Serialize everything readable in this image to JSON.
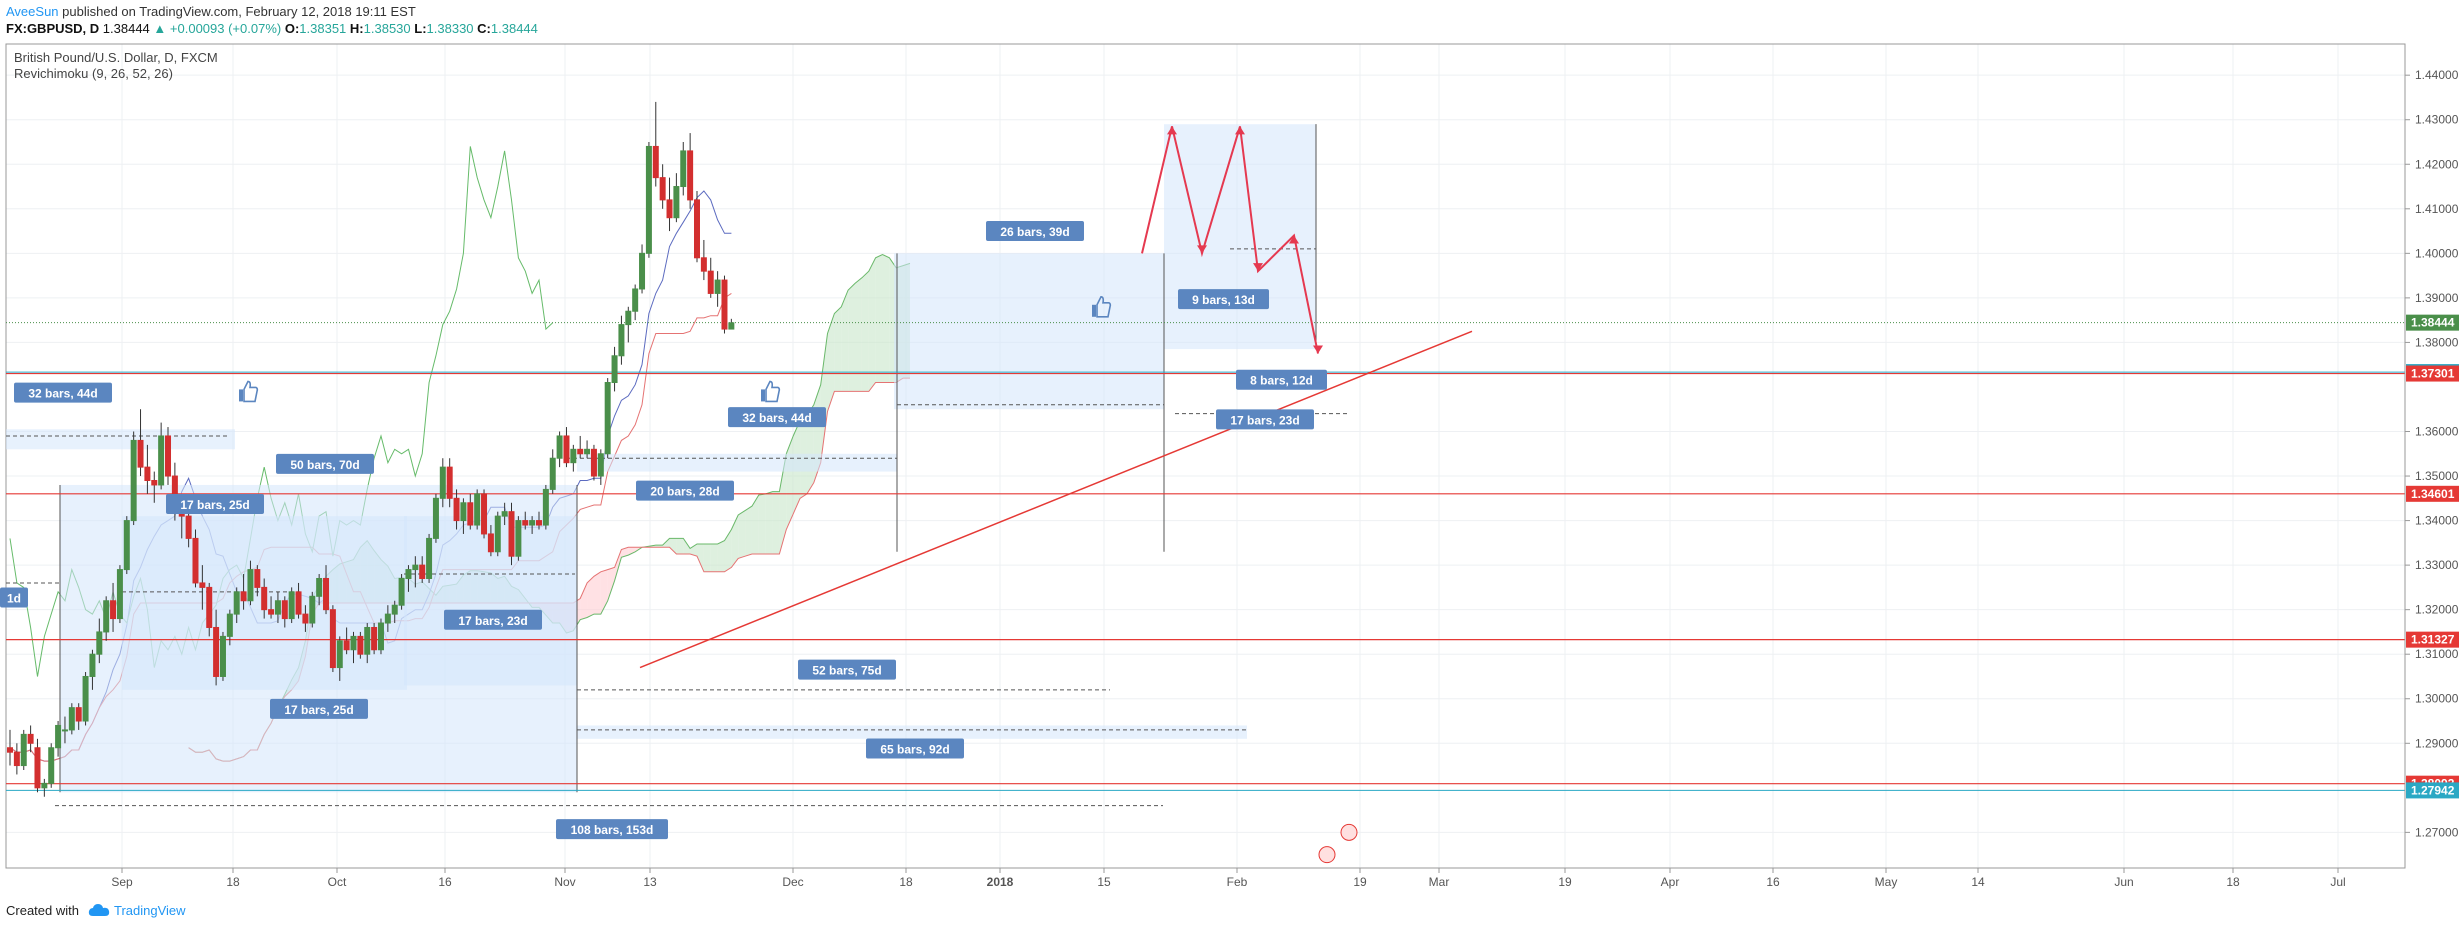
{
  "header": {
    "user": "AveeSun",
    "published": "published on TradingView.com, February 12, 2018 19:11 EST",
    "symbol": "FX:GBPUSD, D",
    "last": "1.38444",
    "change": "▲ +0.00093 (+0.07%)",
    "o_label": "O:",
    "o_value": "1.38351",
    "h_label": "H:",
    "h_value": "1.38530",
    "l_label": "L:",
    "l_value": "1.38330",
    "c_label": "C:",
    "c_value": "1.38444"
  },
  "footer": {
    "created_with": "Created with",
    "brand": "TradingView"
  },
  "colors": {
    "up": "#4a8f4a",
    "down": "#d32f2f",
    "grid": "#eef0f3",
    "axis": "#555555",
    "hline": "#e53935",
    "boxFill": "#d4e5fb",
    "labelBg": "#5b86c0"
  },
  "chart_data": {
    "type": "candlestick",
    "title": "British Pound/U.S. Dollar, D, FXCM",
    "indicator": "Revichimoku (9, 26, 52, 26)",
    "ylim": [
      1.262,
      1.447
    ],
    "x_ticks": [
      "Sep",
      "18",
      "Oct",
      "16",
      "Nov",
      "13",
      "Dec",
      "18",
      "2018",
      "15",
      "Feb",
      "19",
      "Mar",
      "19",
      "Apr",
      "16",
      "May",
      "14",
      "Jun",
      "18",
      "Jul"
    ],
    "y_ticks": [
      "1.44000",
      "1.43000",
      "1.42000",
      "1.41000",
      "1.40000",
      "1.39000",
      "1.38000",
      "1.36000",
      "1.35000",
      "1.34000",
      "1.33000",
      "1.32000",
      "1.31000",
      "1.30000",
      "1.29000",
      "1.27000"
    ],
    "price_tags": [
      {
        "label": "1.38444",
        "value": 1.38444,
        "color": "#4a8f4a"
      },
      {
        "label": "1.37334",
        "value": 1.37334,
        "color": "#2aa8c4"
      },
      {
        "label": "1.37301",
        "value": 1.37301,
        "color": "#e53935"
      },
      {
        "label": "1.34601",
        "value": 1.34601,
        "color": "#e53935"
      },
      {
        "label": "1.31327",
        "value": 1.31327,
        "color": "#e53935"
      },
      {
        "label": "1.28093",
        "value": 1.28093,
        "color": "#e53935"
      },
      {
        "label": "1.27942",
        "value": 1.27942,
        "color": "#2aa8c4"
      }
    ],
    "hlines": [
      1.37301,
      1.34601,
      1.31327,
      1.28093
    ],
    "range_labels": [
      "32 bars, 44d",
      "50 bars, 70d",
      "17 bars, 25d",
      "20 bars, 28d",
      "32 bars, 44d",
      "26 bars, 39d",
      "9 bars, 13d",
      "8 bars, 12d",
      "17 bars, 23d",
      "17 bars, 23d",
      "17 bars, 25d",
      "52 bars, 75d",
      "65 bars, 92d",
      "108 bars, 153d",
      "1d"
    ],
    "candles": [
      [
        1.289,
        1.293,
        1.285,
        1.288
      ],
      [
        1.288,
        1.29,
        1.283,
        1.285
      ],
      [
        1.285,
        1.293,
        1.284,
        1.292
      ],
      [
        1.292,
        1.294,
        1.288,
        1.29
      ],
      [
        1.289,
        1.291,
        1.279,
        1.28
      ],
      [
        1.28,
        1.282,
        1.278,
        1.281
      ],
      [
        1.281,
        1.29,
        1.28,
        1.289
      ],
      [
        1.289,
        1.295,
        1.287,
        1.294
      ],
      [
        1.293,
        1.296,
        1.29,
        1.293
      ],
      [
        1.293,
        1.299,
        1.292,
        1.298
      ],
      [
        1.298,
        1.299,
        1.293,
        1.295
      ],
      [
        1.295,
        1.306,
        1.294,
        1.305
      ],
      [
        1.305,
        1.311,
        1.302,
        1.31
      ],
      [
        1.31,
        1.318,
        1.308,
        1.315
      ],
      [
        1.315,
        1.323,
        1.313,
        1.322
      ],
      [
        1.322,
        1.326,
        1.315,
        1.318
      ],
      [
        1.318,
        1.33,
        1.317,
        1.329
      ],
      [
        1.329,
        1.341,
        1.328,
        1.34
      ],
      [
        1.34,
        1.36,
        1.339,
        1.358
      ],
      [
        1.358,
        1.365,
        1.35,
        1.352
      ],
      [
        1.352,
        1.357,
        1.346,
        1.349
      ],
      [
        1.349,
        1.351,
        1.344,
        1.348
      ],
      [
        1.348,
        1.362,
        1.347,
        1.359
      ],
      [
        1.359,
        1.361,
        1.348,
        1.35
      ],
      [
        1.35,
        1.353,
        1.34,
        1.342
      ],
      [
        1.342,
        1.344,
        1.336,
        1.341
      ],
      [
        1.341,
        1.345,
        1.334,
        1.336
      ],
      [
        1.336,
        1.338,
        1.325,
        1.326
      ],
      [
        1.326,
        1.33,
        1.32,
        1.325
      ],
      [
        1.325,
        1.326,
        1.314,
        1.316
      ],
      [
        1.316,
        1.32,
        1.303,
        1.305
      ],
      [
        1.305,
        1.315,
        1.304,
        1.314
      ],
      [
        1.314,
        1.32,
        1.312,
        1.319
      ],
      [
        1.319,
        1.325,
        1.317,
        1.324
      ],
      [
        1.324,
        1.328,
        1.32,
        1.322
      ],
      [
        1.322,
        1.331,
        1.321,
        1.329
      ],
      [
        1.329,
        1.33,
        1.323,
        1.325
      ],
      [
        1.325,
        1.327,
        1.318,
        1.32
      ],
      [
        1.32,
        1.323,
        1.318,
        1.319
      ],
      [
        1.319,
        1.324,
        1.317,
        1.322
      ],
      [
        1.322,
        1.323,
        1.316,
        1.318
      ],
      [
        1.318,
        1.325,
        1.317,
        1.324
      ],
      [
        1.324,
        1.326,
        1.318,
        1.319
      ],
      [
        1.319,
        1.321,
        1.315,
        1.317
      ],
      [
        1.317,
        1.324,
        1.316,
        1.323
      ],
      [
        1.323,
        1.328,
        1.321,
        1.327
      ],
      [
        1.327,
        1.33,
        1.319,
        1.32
      ],
      [
        1.32,
        1.321,
        1.306,
        1.307
      ],
      [
        1.307,
        1.314,
        1.304,
        1.313
      ],
      [
        1.313,
        1.316,
        1.31,
        1.311
      ],
      [
        1.311,
        1.315,
        1.308,
        1.314
      ],
      [
        1.314,
        1.315,
        1.309,
        1.31
      ],
      [
        1.31,
        1.317,
        1.308,
        1.316
      ],
      [
        1.316,
        1.317,
        1.31,
        1.311
      ],
      [
        1.311,
        1.318,
        1.31,
        1.317
      ],
      [
        1.317,
        1.321,
        1.315,
        1.319
      ],
      [
        1.319,
        1.322,
        1.317,
        1.321
      ],
      [
        1.321,
        1.328,
        1.32,
        1.327
      ],
      [
        1.327,
        1.33,
        1.324,
        1.329
      ],
      [
        1.329,
        1.332,
        1.325,
        1.33
      ],
      [
        1.33,
        1.332,
        1.326,
        1.327
      ],
      [
        1.327,
        1.337,
        1.326,
        1.336
      ],
      [
        1.336,
        1.346,
        1.335,
        1.345
      ],
      [
        1.345,
        1.354,
        1.343,
        1.352
      ],
      [
        1.352,
        1.354,
        1.343,
        1.345
      ],
      [
        1.345,
        1.347,
        1.338,
        1.34
      ],
      [
        1.34,
        1.345,
        1.337,
        1.344
      ],
      [
        1.344,
        1.346,
        1.338,
        1.339
      ],
      [
        1.339,
        1.347,
        1.338,
        1.346
      ],
      [
        1.346,
        1.347,
        1.336,
        1.337
      ],
      [
        1.337,
        1.339,
        1.332,
        1.333
      ],
      [
        1.333,
        1.342,
        1.332,
        1.341
      ],
      [
        1.341,
        1.344,
        1.339,
        1.342
      ],
      [
        1.342,
        1.344,
        1.33,
        1.332
      ],
      [
        1.332,
        1.341,
        1.331,
        1.34
      ],
      [
        1.34,
        1.342,
        1.338,
        1.339
      ],
      [
        1.339,
        1.341,
        1.337,
        1.34
      ],
      [
        1.34,
        1.342,
        1.338,
        1.339
      ],
      [
        1.339,
        1.348,
        1.338,
        1.347
      ],
      [
        1.347,
        1.356,
        1.346,
        1.354
      ],
      [
        1.354,
        1.36,
        1.352,
        1.359
      ],
      [
        1.359,
        1.361,
        1.352,
        1.353
      ],
      [
        1.353,
        1.357,
        1.351,
        1.356
      ],
      [
        1.356,
        1.359,
        1.354,
        1.355
      ],
      [
        1.355,
        1.358,
        1.354,
        1.356
      ],
      [
        1.356,
        1.357,
        1.349,
        1.35
      ],
      [
        1.35,
        1.356,
        1.348,
        1.355
      ],
      [
        1.355,
        1.372,
        1.354,
        1.371
      ],
      [
        1.371,
        1.379,
        1.369,
        1.377
      ],
      [
        1.377,
        1.386,
        1.375,
        1.384
      ],
      [
        1.384,
        1.388,
        1.38,
        1.387
      ],
      [
        1.387,
        1.393,
        1.385,
        1.392
      ],
      [
        1.392,
        1.402,
        1.391,
        1.4
      ],
      [
        1.4,
        1.425,
        1.399,
        1.424
      ],
      [
        1.424,
        1.434,
        1.415,
        1.417
      ],
      [
        1.417,
        1.42,
        1.41,
        1.412
      ],
      [
        1.412,
        1.417,
        1.405,
        1.408
      ],
      [
        1.408,
        1.418,
        1.407,
        1.415
      ],
      [
        1.415,
        1.425,
        1.413,
        1.423
      ],
      [
        1.423,
        1.427,
        1.41,
        1.412
      ],
      [
        1.412,
        1.414,
        1.398,
        1.399
      ],
      [
        1.399,
        1.403,
        1.394,
        1.396
      ],
      [
        1.396,
        1.399,
        1.39,
        1.391
      ],
      [
        1.391,
        1.396,
        1.388,
        1.394
      ],
      [
        1.394,
        1.395,
        1.382,
        1.383
      ],
      [
        1.383,
        1.3853,
        1.3833,
        1.3844
      ]
    ]
  }
}
